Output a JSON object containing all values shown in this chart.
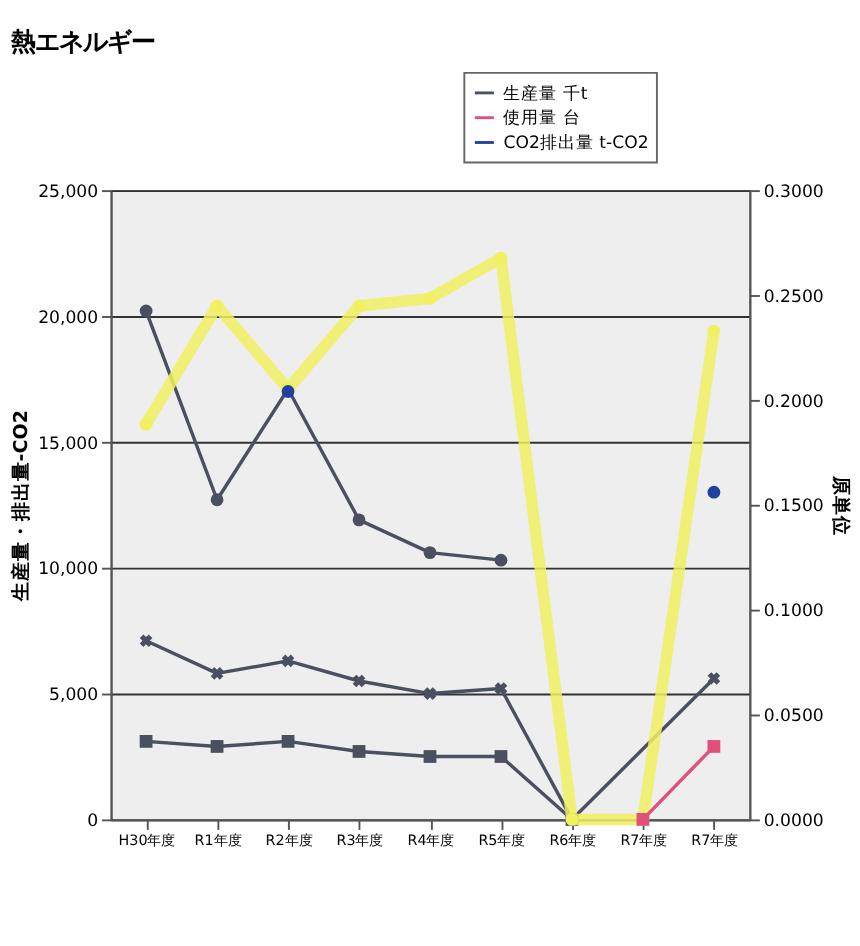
{
  "chart_data": {
    "type": "line",
    "title": "熱エネルギー",
    "categories": [
      "H30年度",
      "R1年度",
      "R2年度",
      "R3年度",
      "R4年度",
      "R5年度",
      "R6年度",
      "R7年度",
      "R7年度"
    ],
    "series": [
      {
        "name": "生産量 千t",
        "color": "#4a5060",
        "marker": "square",
        "values": [
          3100,
          2900,
          3100,
          2700,
          2500,
          2500,
          0,
          null,
          null
        ]
      },
      {
        "color": "#4a5060",
        "marker": "cross",
        "values": [
          7100,
          5800,
          6300,
          5500,
          5000,
          5200,
          0,
          null,
          5600
        ]
      },
      {
        "color": "#4a5060",
        "marker": "circle",
        "values": [
          20200,
          12700,
          17100,
          11900,
          10600,
          10300,
          null,
          null,
          null
        ]
      },
      {
        "color": "#f0f060",
        "marker": "circle",
        "values": [
          15700,
          20400,
          17100,
          20400,
          20700,
          22300,
          0,
          0,
          19400
        ]
      },
      {
        "name": "使用量 台",
        "color": "#e0507a",
        "marker": "square",
        "values": [
          null,
          null,
          null,
          null,
          null,
          null,
          null,
          0,
          2900
        ]
      },
      {
        "name": "CO2排出量 t-CO2",
        "type": "scatter",
        "axis": "y2",
        "color": "#2040a0",
        "marker": "circle",
        "values": [
          null,
          null,
          0.204,
          null,
          null,
          null,
          null,
          null,
          0.156
        ]
      }
    ],
    "ylabel": "生産量・排出量-CO2",
    "y2label": "原単位",
    "ylim": [
      0,
      25000
    ],
    "yticks": [
      0,
      {
        "value": 5000,
        "label": "5,000"
      },
      {
        "value": 10000,
        "label": "10,000"
      },
      {
        "value": 15000,
        "label": "15,000"
      },
      {
        "value": 20000,
        "label": "20,000"
      },
      {
        "value": 25000,
        "label": "25,000"
      }
    ],
    "y2lim": [
      0,
      0.3
    ],
    "y2ticks": [
      {
        "value": 0,
        "label": "0.0000"
      },
      {
        "value": 0.05,
        "label": "0.0500"
      },
      {
        "value": 0.1,
        "label": "0.1000"
      },
      {
        "value": 0.15,
        "label": "0.1500"
      },
      {
        "value": 0.2,
        "label": "0.2000"
      },
      {
        "value": 0.25,
        "label": "0.2500"
      },
      {
        "value": 0.3,
        "label": "0.3000"
      }
    ],
    "grid": "y",
    "legend": "top right"
  }
}
